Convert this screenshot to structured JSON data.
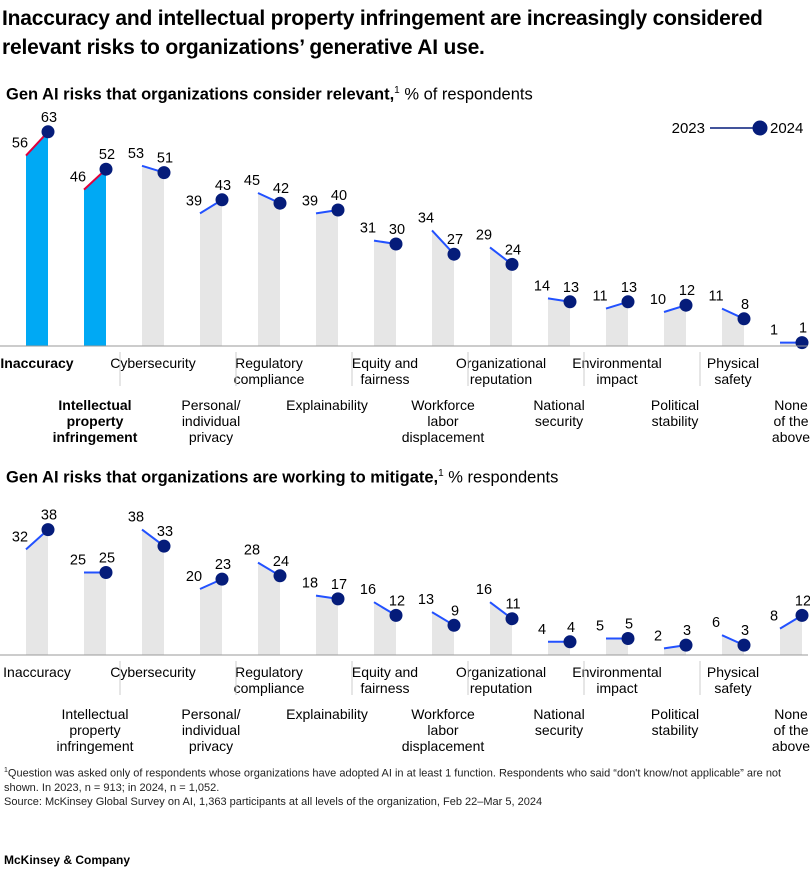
{
  "headline": "Inaccuracy and intellectual property infringement are increasingly considered relevant risks to organizations’ generative AI use.",
  "legend": {
    "label_2023": "2023",
    "label_2024": "2024"
  },
  "colors": {
    "highlight": "#00a9f4",
    "bar": "#e6e6e6",
    "marker": "#051c7a",
    "segment": "#2251ff",
    "highlight_segment": "#e0003c",
    "axis": "#999999"
  },
  "chart_data": [
    {
      "type": "bar",
      "subtitle_bold": "Gen AI risks that organizations consider relevant,",
      "subtitle_sup": "1",
      "subtitle_rest": " % of respondents",
      "categories": [
        [
          "Inaccuracy"
        ],
        [
          "Intellectual",
          "property",
          "infringement"
        ],
        [
          "Cybersecurity"
        ],
        [
          "Personal/",
          "individual",
          "privacy"
        ],
        [
          "Regulatory",
          "compliance"
        ],
        [
          "Explainability"
        ],
        [
          "Equity and",
          "fairness"
        ],
        [
          "Workforce",
          "labor",
          "displacement"
        ],
        [
          "Organizational",
          "reputation"
        ],
        [
          "National",
          "security"
        ],
        [
          "Environmental",
          "impact"
        ],
        [
          "Political",
          "stability"
        ],
        [
          "Physical",
          "safety"
        ],
        [
          "None",
          "of the",
          "above"
        ]
      ],
      "highlighted": [
        0,
        1
      ],
      "series": [
        {
          "name": "2023",
          "values": [
            56,
            46,
            53,
            39,
            45,
            39,
            31,
            34,
            29,
            14,
            11,
            10,
            11,
            1
          ]
        },
        {
          "name": "2024",
          "values": [
            63,
            52,
            51,
            43,
            42,
            40,
            30,
            27,
            24,
            13,
            13,
            12,
            8,
            1
          ]
        }
      ],
      "ylim": [
        0,
        65
      ]
    },
    {
      "type": "bar",
      "subtitle_bold": "Gen AI risks that organizations are working to mitigate,",
      "subtitle_sup": "1",
      "subtitle_rest": " % respondents",
      "categories": [
        [
          "Inaccuracy"
        ],
        [
          "Intellectual",
          "property",
          "infringement"
        ],
        [
          "Cybersecurity"
        ],
        [
          "Personal/",
          "individual",
          "privacy"
        ],
        [
          "Regulatory",
          "compliance"
        ],
        [
          "Explainability"
        ],
        [
          "Equity and",
          "fairness"
        ],
        [
          "Workforce",
          "labor",
          "displacement"
        ],
        [
          "Organizational",
          "reputation"
        ],
        [
          "National",
          "security"
        ],
        [
          "Environmental",
          "impact"
        ],
        [
          "Political",
          "stability"
        ],
        [
          "Physical",
          "safety"
        ],
        [
          "None",
          "of the",
          "above"
        ]
      ],
      "highlighted": [],
      "series": [
        {
          "name": "2023",
          "values": [
            32,
            25,
            38,
            20,
            28,
            18,
            16,
            13,
            16,
            4,
            5,
            2,
            6,
            8
          ]
        },
        {
          "name": "2024",
          "values": [
            38,
            25,
            33,
            23,
            24,
            17,
            12,
            9,
            11,
            4,
            5,
            3,
            3,
            12
          ]
        }
      ],
      "ylim": [
        0,
        40
      ]
    }
  ],
  "footnote": {
    "sup": "1",
    "line1": "Question was asked only of respondents whose organizations have adopted AI in at least 1 function. Respondents who said “don't know/not applicable” are not shown. In 2023, n = 913; in 2024, n = 1,052.",
    "line2": "Source: McKinsey Global Survey on AI, 1,363 participants at all levels of the organization, Feb 22–Mar 5, 2024"
  },
  "brand": "McKinsey & Company"
}
